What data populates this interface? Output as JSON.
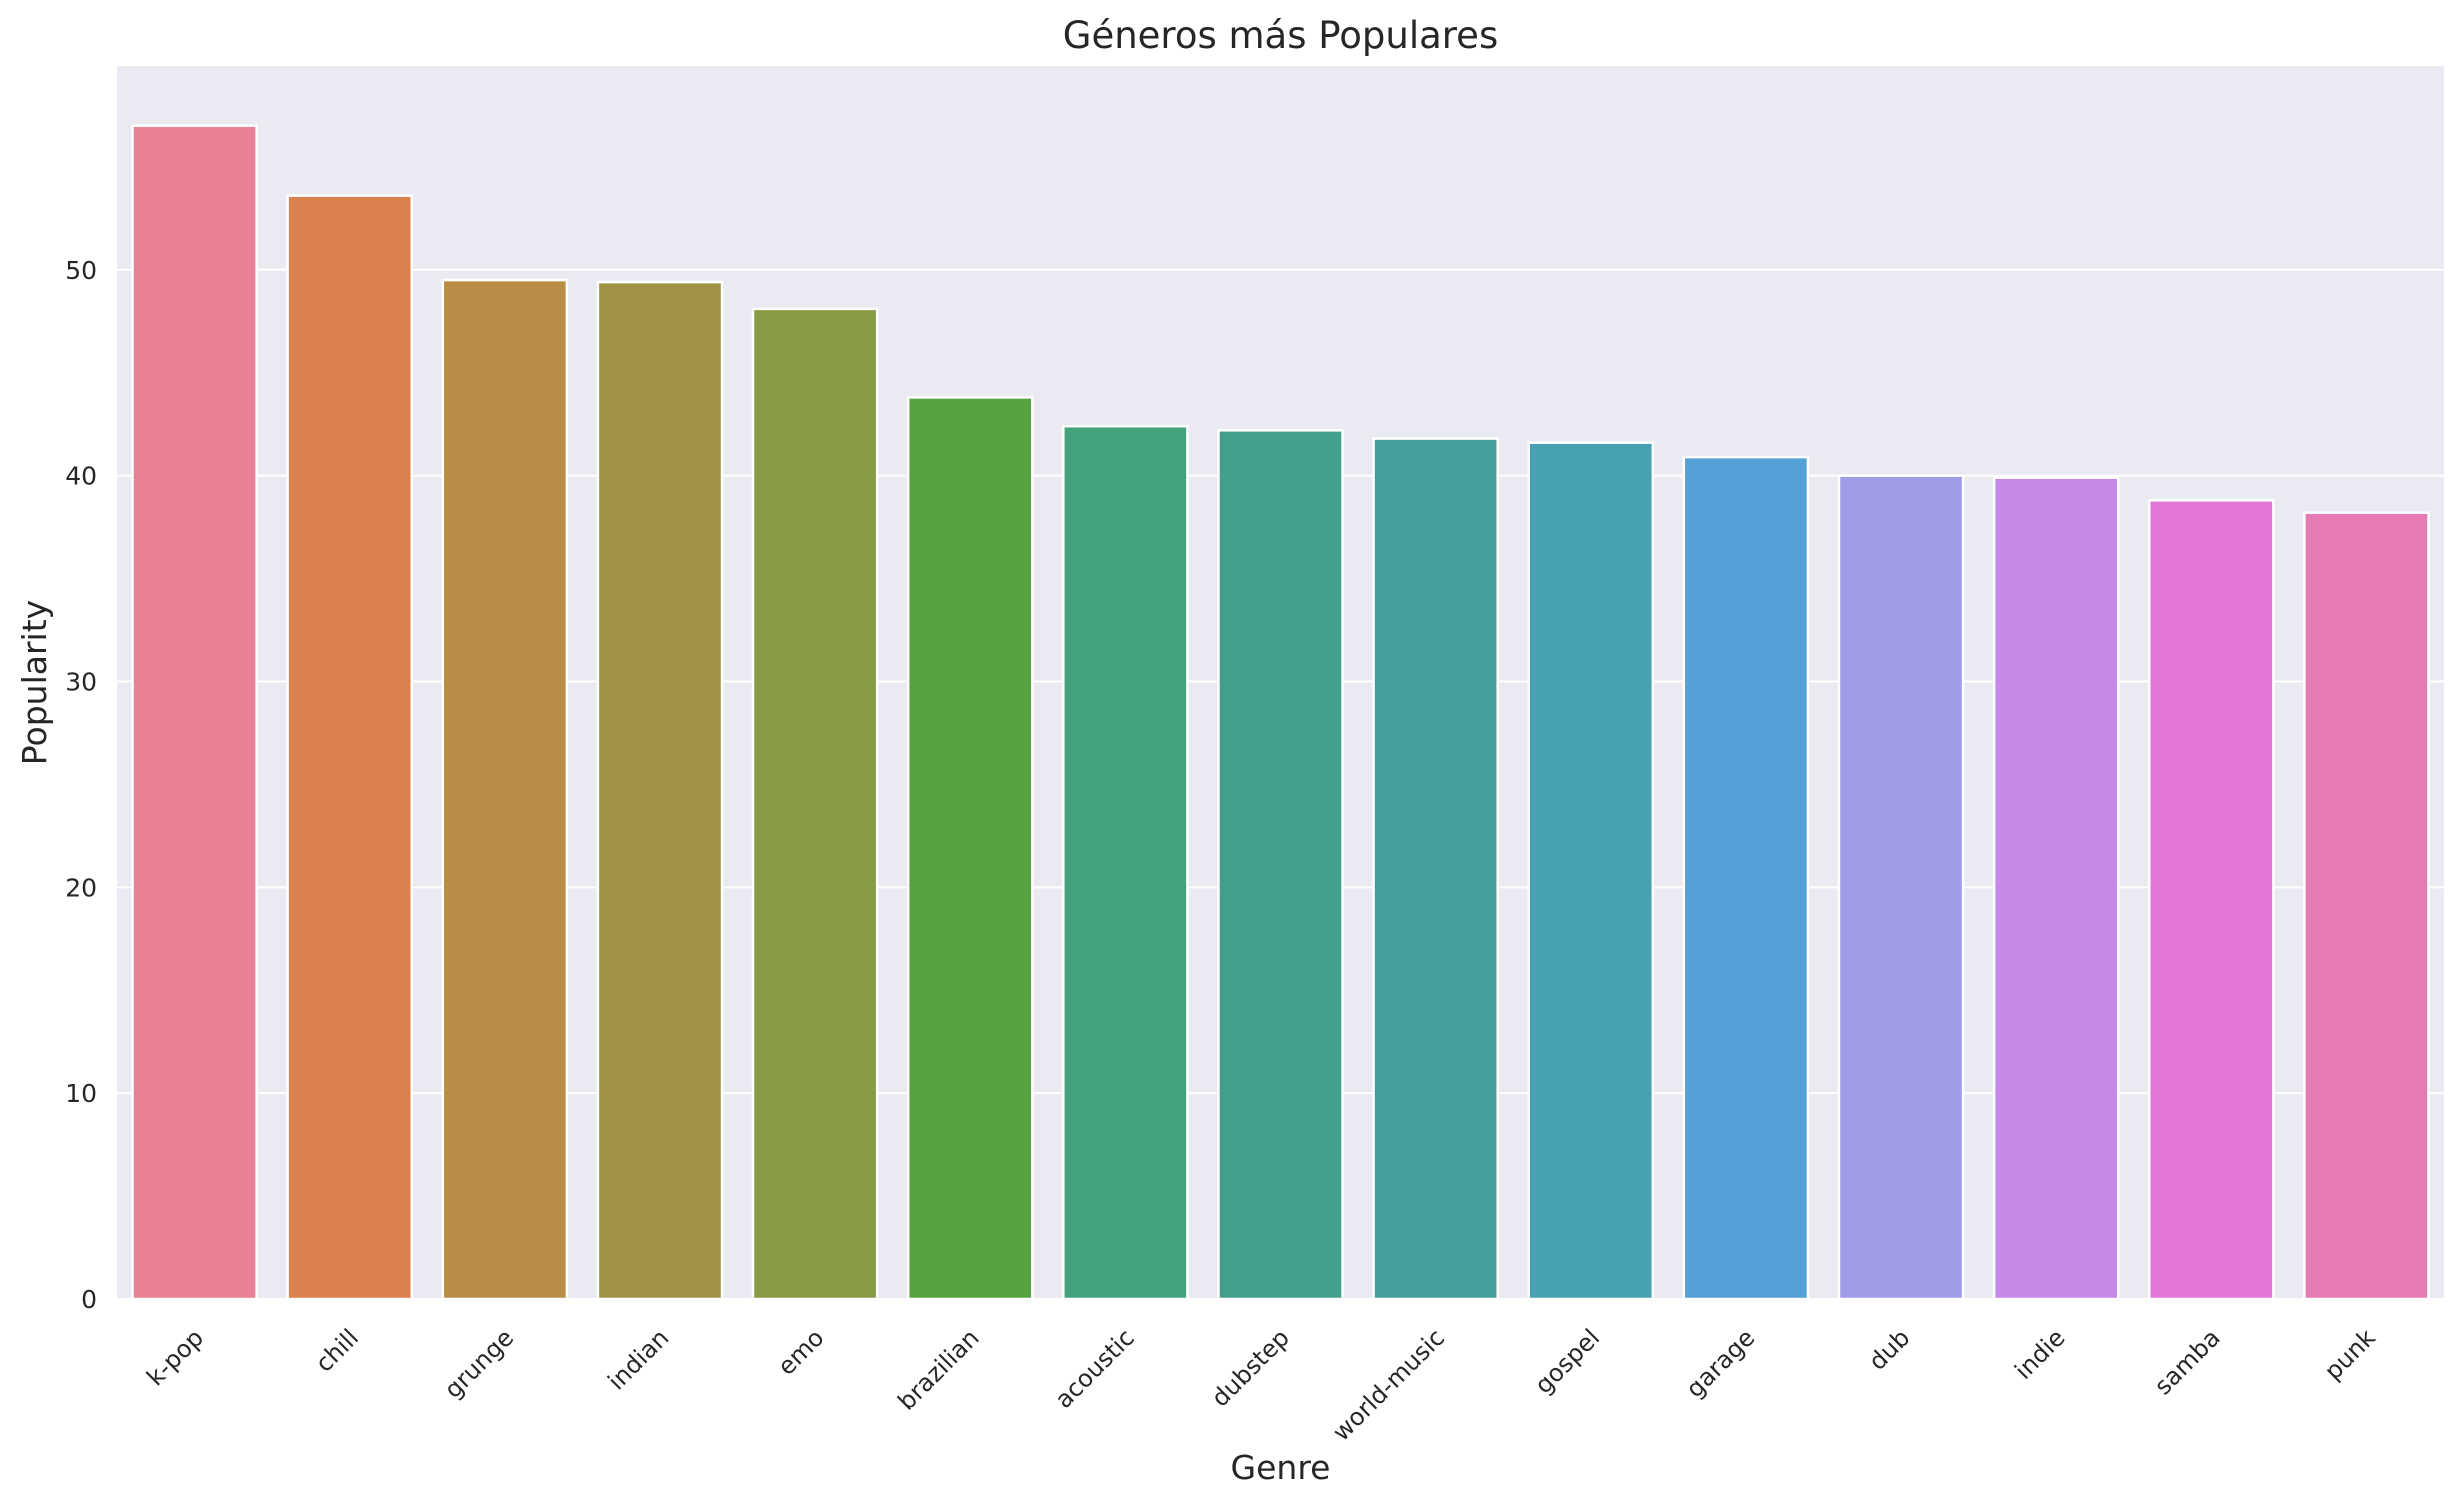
{
  "chart_data": {
    "type": "bar",
    "title": "Géneros más Populares",
    "xlabel": "Genre",
    "ylabel": "Popularity",
    "ylim": [
      0,
      59.9
    ],
    "yticks": [
      0,
      10,
      20,
      30,
      40,
      50
    ],
    "grid": true,
    "categories": [
      "k-pop",
      "chill",
      "grunge",
      "indian",
      "emo",
      "brazilian",
      "acoustic",
      "dubstep",
      "world-music",
      "gospel",
      "garage",
      "dub",
      "indie",
      "samba",
      "punk"
    ],
    "values": [
      57.0,
      53.6,
      49.5,
      49.4,
      48.1,
      43.8,
      42.4,
      42.2,
      41.8,
      41.6,
      40.9,
      40.0,
      39.9,
      38.8,
      38.2
    ],
    "colors": [
      "#e88193",
      "#db814d",
      "#b88e46",
      "#a09244",
      "#879a44",
      "#57a140",
      "#44a27c",
      "#449e8c",
      "#459e99",
      "#48a0b3",
      "#53a1d7",
      "#a19ce8",
      "#c889e6",
      "#e277d8",
      "#e67bb3"
    ],
    "background": "#eaeaf2",
    "grid_color": "#ffffff"
  }
}
